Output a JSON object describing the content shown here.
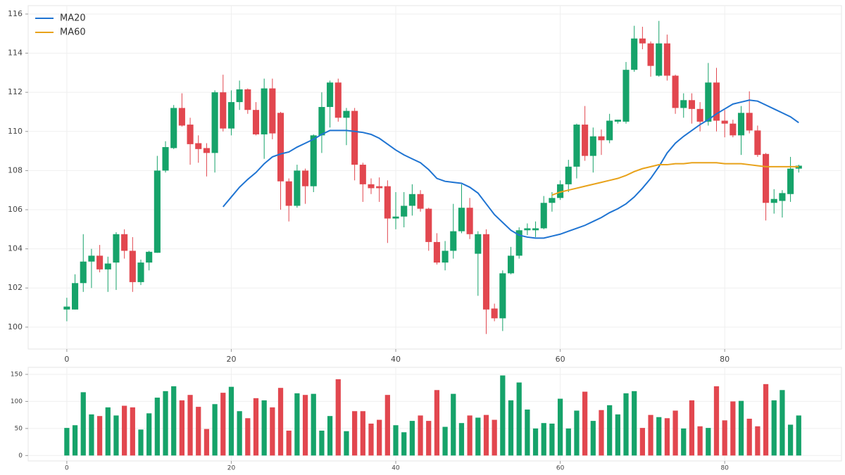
{
  "chart_data": [
    {
      "type": "candlestick",
      "x": [
        0,
        1,
        2,
        3,
        4,
        5,
        6,
        7,
        8,
        9,
        10,
        11,
        12,
        13,
        14,
        15,
        16,
        17,
        18,
        19,
        20,
        21,
        22,
        23,
        24,
        25,
        26,
        27,
        28,
        29,
        30,
        31,
        32,
        33,
        34,
        35,
        36,
        37,
        38,
        39,
        40,
        41,
        42,
        43,
        44,
        45,
        46,
        47,
        48,
        49,
        50,
        51,
        52,
        53,
        54,
        55,
        56,
        57,
        58,
        59,
        60,
        61,
        62,
        63,
        64,
        65,
        66,
        67,
        68,
        69,
        70,
        71,
        72,
        73,
        74,
        75,
        76,
        77,
        78,
        79,
        80,
        81,
        82,
        83,
        84,
        85,
        86,
        87,
        88,
        89
      ],
      "open": [
        100.9,
        100.9,
        102.25,
        103.35,
        103.65,
        102.95,
        103.3,
        104.75,
        103.9,
        102.3,
        103.3,
        103.8,
        108.0,
        109.15,
        111.2,
        110.35,
        109.4,
        109.15,
        108.9,
        112.0,
        110.15,
        111.5,
        112.15,
        111.1,
        109.85,
        112.2,
        110.95,
        107.45,
        106.2,
        108.0,
        107.2,
        109.8,
        111.25,
        112.5,
        110.7,
        111.05,
        108.3,
        107.3,
        107.2,
        107.2,
        105.55,
        105.65,
        106.2,
        106.8,
        106.05,
        104.35,
        103.3,
        103.9,
        104.9,
        106.1,
        103.75,
        104.75,
        100.95,
        100.45,
        102.75,
        103.65,
        104.95,
        104.95,
        105.05,
        106.35,
        106.6,
        107.3,
        108.2,
        110.35,
        108.75,
        109.75,
        109.55,
        110.5,
        110.5,
        113.15,
        114.75,
        114.5,
        112.85,
        114.5,
        112.85,
        111.2,
        111.6,
        111.15,
        110.5,
        112.5,
        110.55,
        110.4,
        109.8,
        110.95,
        110.05,
        108.85,
        106.35,
        106.45,
        106.8,
        108.1
      ],
      "high": [
        101.5,
        102.7,
        104.75,
        104.0,
        104.2,
        103.6,
        104.85,
        105.0,
        104.6,
        103.45,
        103.9,
        108.75,
        109.5,
        111.35,
        111.95,
        110.7,
        109.8,
        109.4,
        112.1,
        112.9,
        112.1,
        112.6,
        112.2,
        111.5,
        112.7,
        112.7,
        111.0,
        107.6,
        108.3,
        108.1,
        109.85,
        112.0,
        112.6,
        112.7,
        111.2,
        111.2,
        108.4,
        107.6,
        107.65,
        107.5,
        106.9,
        106.9,
        107.3,
        107.0,
        106.1,
        104.8,
        104.4,
        106.3,
        107.3,
        106.6,
        104.9,
        105.0,
        101.2,
        102.9,
        104.1,
        105.1,
        105.3,
        105.4,
        106.7,
        106.9,
        107.5,
        108.55,
        110.4,
        111.3,
        110.2,
        110.1,
        110.9,
        110.6,
        113.55,
        115.4,
        115.35,
        114.6,
        115.65,
        114.95,
        112.9,
        111.95,
        111.95,
        111.5,
        113.5,
        113.25,
        111.1,
        110.6,
        111.3,
        112.05,
        110.3,
        108.9,
        107.05,
        107.0,
        108.7,
        108.3
      ],
      "low": [
        100.3,
        100.9,
        101.8,
        102.0,
        102.8,
        101.8,
        101.9,
        103.5,
        101.8,
        102.15,
        102.9,
        103.8,
        107.9,
        109.1,
        110.25,
        108.3,
        108.4,
        107.7,
        107.9,
        110.0,
        109.8,
        111.1,
        110.9,
        109.8,
        108.6,
        109.6,
        106.0,
        105.4,
        106.1,
        106.3,
        106.9,
        108.9,
        110.2,
        110.5,
        109.3,
        107.5,
        106.4,
        106.8,
        106.4,
        104.3,
        105.0,
        105.1,
        105.7,
        105.9,
        103.9,
        103.2,
        102.9,
        103.5,
        104.8,
        104.5,
        101.6,
        99.65,
        100.3,
        99.8,
        102.7,
        103.5,
        104.7,
        104.6,
        105.0,
        105.9,
        106.5,
        106.9,
        107.6,
        108.5,
        107.9,
        108.8,
        109.4,
        110.4,
        110.4,
        113.05,
        114.2,
        112.8,
        112.8,
        112.6,
        110.9,
        110.7,
        110.4,
        110.0,
        110.3,
        110.0,
        109.7,
        109.7,
        108.8,
        109.9,
        108.7,
        105.45,
        105.8,
        105.6,
        106.4,
        107.9
      ],
      "close": [
        101.05,
        102.25,
        103.35,
        103.65,
        102.95,
        103.25,
        104.75,
        103.9,
        102.3,
        103.3,
        103.85,
        108.0,
        109.2,
        111.2,
        110.3,
        109.35,
        109.1,
        108.9,
        112.0,
        110.15,
        111.5,
        112.15,
        111.1,
        109.85,
        112.2,
        109.9,
        107.45,
        106.2,
        108.0,
        107.2,
        109.8,
        111.25,
        112.5,
        110.7,
        111.05,
        108.3,
        107.3,
        107.1,
        107.1,
        105.55,
        105.65,
        106.2,
        106.8,
        106.05,
        104.35,
        103.3,
        103.9,
        104.9,
        106.1,
        104.75,
        104.75,
        100.9,
        100.45,
        102.75,
        103.65,
        104.95,
        105.05,
        105.05,
        106.35,
        106.6,
        107.3,
        108.2,
        110.35,
        108.75,
        109.75,
        109.55,
        110.55,
        110.6,
        113.15,
        114.75,
        114.5,
        113.35,
        114.5,
        112.85,
        111.2,
        111.6,
        111.15,
        110.5,
        112.5,
        110.55,
        110.4,
        109.8,
        110.95,
        110.05,
        108.8,
        106.35,
        106.55,
        106.85,
        108.1,
        108.25
      ],
      "up_color": "#16a36a",
      "down_color": "#e2474f",
      "series": [
        {
          "name": "MA20",
          "color": "#1f74d2",
          "values": [
            null,
            null,
            null,
            null,
            null,
            null,
            null,
            null,
            null,
            null,
            null,
            null,
            null,
            null,
            null,
            null,
            null,
            null,
            null,
            106.15,
            106.65,
            107.15,
            107.55,
            107.9,
            108.35,
            108.7,
            108.85,
            108.95,
            109.2,
            109.4,
            109.6,
            109.85,
            110.05,
            110.05,
            110.05,
            110.0,
            109.95,
            109.85,
            109.65,
            109.35,
            109.05,
            108.8,
            108.6,
            108.4,
            108.05,
            107.6,
            107.45,
            107.4,
            107.35,
            107.15,
            106.85,
            106.3,
            105.75,
            105.35,
            104.95,
            104.7,
            104.6,
            104.55,
            104.55,
            104.65,
            104.75,
            104.9,
            105.05,
            105.2,
            105.4,
            105.6,
            105.85,
            106.05,
            106.3,
            106.65,
            107.1,
            107.6,
            108.2,
            108.9,
            109.4,
            109.75,
            110.05,
            110.35,
            110.6,
            110.9,
            111.15,
            111.4,
            111.5,
            111.6,
            111.55,
            111.35,
            111.15,
            110.95,
            110.75,
            110.45
          ]
        },
        {
          "name": "MA60",
          "color": "#e8a21a",
          "values": [
            null,
            null,
            null,
            null,
            null,
            null,
            null,
            null,
            null,
            null,
            null,
            null,
            null,
            null,
            null,
            null,
            null,
            null,
            null,
            null,
            null,
            null,
            null,
            null,
            null,
            null,
            null,
            null,
            null,
            null,
            null,
            null,
            null,
            null,
            null,
            null,
            null,
            null,
            null,
            null,
            null,
            null,
            null,
            null,
            null,
            null,
            null,
            null,
            null,
            null,
            null,
            null,
            null,
            null,
            null,
            null,
            null,
            null,
            null,
            106.75,
            106.9,
            107.0,
            107.1,
            107.2,
            107.3,
            107.4,
            107.5,
            107.6,
            107.75,
            107.95,
            108.1,
            108.2,
            108.3,
            108.3,
            108.35,
            108.35,
            108.4,
            108.4,
            108.4,
            108.4,
            108.35,
            108.35,
            108.35,
            108.3,
            108.25,
            108.2,
            108.2,
            108.2,
            108.2,
            108.2
          ]
        }
      ],
      "xlim": [
        -4.7,
        94.2
      ],
      "xticks": [
        0,
        20,
        40,
        60,
        80
      ],
      "ylim": [
        98.88,
        116.43
      ],
      "yticks": [
        100,
        102,
        104,
        106,
        108,
        110,
        112,
        114,
        116
      ],
      "grid": true,
      "legend": "upper left"
    },
    {
      "type": "bar",
      "values": [
        51,
        56,
        117,
        76,
        73,
        89,
        74,
        92,
        89,
        48,
        78,
        107,
        119,
        128,
        102,
        112,
        90,
        49,
        95,
        116,
        127,
        82,
        69,
        106,
        102,
        89,
        125,
        46,
        115,
        112,
        114,
        46,
        73,
        141,
        45,
        82,
        82,
        59,
        66,
        112,
        56,
        43,
        64,
        74,
        64,
        121,
        53,
        114,
        60,
        74,
        70,
        75,
        66,
        148,
        102,
        135,
        85,
        50,
        60,
        59,
        105,
        50,
        83,
        118,
        64,
        84,
        93,
        76,
        115,
        119,
        51,
        75,
        71,
        69,
        83,
        50,
        102,
        54,
        51,
        128,
        65,
        100,
        101,
        68,
        54,
        132,
        102,
        121,
        57,
        74
      ],
      "xlim": [
        -4.7,
        94.2
      ],
      "xticks": [
        0,
        20,
        40,
        60,
        80
      ],
      "ylim": [
        -10,
        163
      ],
      "yticks": [
        0,
        50,
        100,
        150
      ],
      "grid": true
    }
  ]
}
